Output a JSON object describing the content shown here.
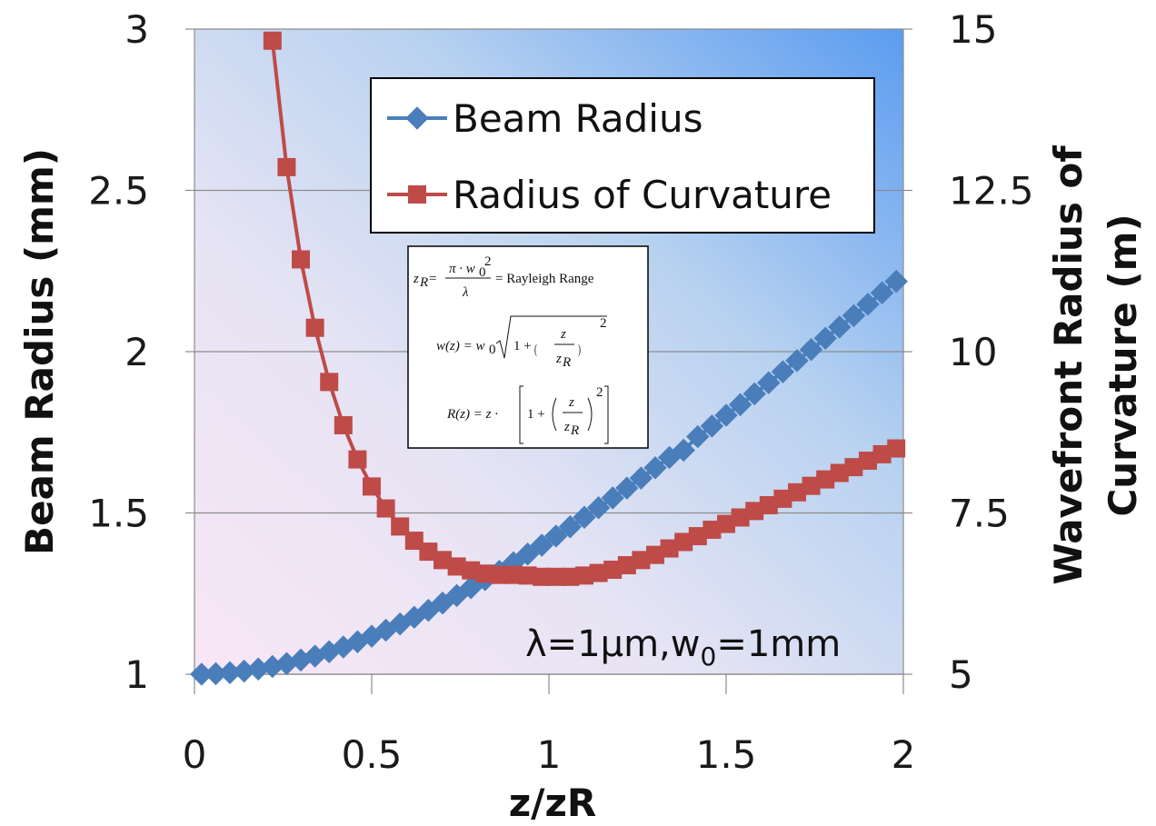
{
  "chart_data": {
    "type": "line",
    "xlabel": "z/zR",
    "ylabel_left": "Beam Radius (mm)",
    "ylabel_right_lines": [
      "Wavefront Radius of",
      "Curvature (m)"
    ],
    "xlim": [
      0,
      2
    ],
    "ylim_left": [
      1,
      3
    ],
    "ylim_right": [
      5,
      15
    ],
    "x_ticks": [
      "0",
      "0.5",
      "1",
      "1.5",
      "2"
    ],
    "y_left_ticks": [
      "1",
      "1.5",
      "2",
      "2.5",
      "3"
    ],
    "y_right_ticks": [
      "5",
      "7.5",
      "10",
      "12.5",
      "15"
    ],
    "grid": "horizontal",
    "legend_position": "top-right",
    "series": [
      {
        "name": "Beam Radius",
        "axis": "left",
        "color": "#4a7ebb",
        "marker": "diamond",
        "x": [
          0.02,
          0.06,
          0.1,
          0.14,
          0.18,
          0.22,
          0.26,
          0.3,
          0.34,
          0.38,
          0.42,
          0.46,
          0.5,
          0.54,
          0.58,
          0.62,
          0.66,
          0.7,
          0.74,
          0.78,
          0.82,
          0.86,
          0.9,
          0.94,
          0.98,
          1.02,
          1.06,
          1.1,
          1.14,
          1.18,
          1.22,
          1.26,
          1.3,
          1.34,
          1.38,
          1.42,
          1.46,
          1.5,
          1.54,
          1.58,
          1.62,
          1.66,
          1.7,
          1.74,
          1.78,
          1.82,
          1.86,
          1.9,
          1.94,
          1.98
        ],
        "y": [
          1.0002,
          1.0018,
          1.005,
          1.0097,
          1.0161,
          1.0239,
          1.0332,
          1.044,
          1.0562,
          1.0698,
          1.0846,
          1.1006,
          1.118,
          1.1365,
          1.156,
          1.1766,
          1.1981,
          1.2207,
          1.2441,
          1.2683,
          1.2933,
          1.3191,
          1.3454,
          1.3725,
          1.4001,
          1.4284,
          1.457,
          1.4866,
          1.5163,
          1.5466,
          1.5772,
          1.6082,
          1.6401,
          1.672,
          1.6945,
          1.7365,
          1.7693,
          1.8028,
          1.836,
          1.8694,
          1.9035,
          1.9376,
          1.9721,
          2.0067,
          2.0414,
          2.0765,
          2.1117,
          2.147,
          2.1824,
          2.218
        ]
      },
      {
        "name": "Radius of Curvature",
        "axis": "right",
        "color": "#be4b48",
        "marker": "square",
        "x": [
          0.22,
          0.26,
          0.3,
          0.34,
          0.38,
          0.42,
          0.46,
          0.5,
          0.54,
          0.58,
          0.62,
          0.66,
          0.7,
          0.74,
          0.78,
          0.82,
          0.86,
          0.9,
          0.94,
          0.98,
          1.02,
          1.06,
          1.1,
          1.14,
          1.18,
          1.22,
          1.26,
          1.3,
          1.34,
          1.38,
          1.42,
          1.46,
          1.5,
          1.54,
          1.58,
          1.62,
          1.66,
          1.7,
          1.74,
          1.78,
          1.82,
          1.86,
          1.9,
          1.94,
          1.98
        ],
        "y": [
          14.82,
          12.86,
          11.43,
          10.37,
          9.53,
          8.86,
          8.33,
          7.91,
          7.57,
          7.29,
          7.07,
          6.9,
          6.77,
          6.67,
          6.61,
          6.56,
          6.54,
          6.54,
          6.53,
          6.51,
          6.51,
          6.51,
          6.53,
          6.57,
          6.62,
          6.69,
          6.77,
          6.85,
          6.95,
          7.05,
          7.14,
          7.24,
          7.33,
          7.43,
          7.53,
          7.62,
          7.72,
          7.82,
          7.92,
          8.02,
          8.12,
          8.21,
          8.31,
          8.41,
          8.5
        ]
      }
    ],
    "annotation": {
      "lambda_part": "λ=1μm,w",
      "sub": "0",
      "rest": "=1mm"
    },
    "equations": {
      "eq1_rhs": "= Rayleigh Range"
    }
  },
  "colors": {
    "beam": "#4a7ebb",
    "curvature": "#be4b48"
  }
}
